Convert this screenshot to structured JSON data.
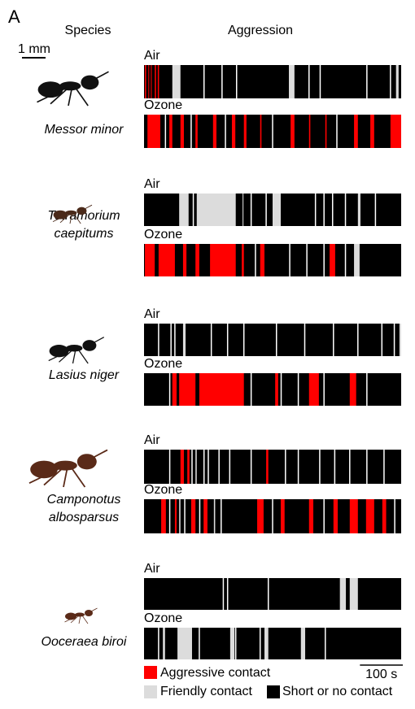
{
  "panel_label": "A",
  "headers": {
    "species": "Species",
    "aggression": "Aggression"
  },
  "size_scale": "1 mm",
  "time_scale": {
    "label": "100 s",
    "seconds": 100
  },
  "duration": 600,
  "legend": {
    "aggressive": {
      "label": "Aggressive contact",
      "color": "#ff0000"
    },
    "friendly": {
      "label": "Friendly contact",
      "color": "#dcdcdc"
    },
    "none": {
      "label": "Short or no contact",
      "color": "#000000"
    }
  },
  "rows": [
    {
      "species": [
        "Messor minor"
      ],
      "conditions": [
        {
          "label": "Air",
          "aggressive": [
            [
              2,
              5
            ],
            [
              10,
              12
            ],
            [
              16,
              18
            ],
            [
              25,
              28
            ],
            [
              32,
              35
            ]
          ],
          "friendly": [
            [
              66,
              85
            ],
            [
              338,
              351
            ],
            [
              588,
              594
            ]
          ],
          "breaks": [
            140,
            182,
            216,
            385,
            411,
            520,
            575
          ]
        },
        {
          "label": "Ozone",
          "aggressive": [
            [
              8,
              38
            ],
            [
              59,
              66
            ],
            [
              85,
              93
            ],
            [
              120,
              125
            ],
            [
              161,
              169
            ],
            [
              205,
              213
            ],
            [
              233,
              239
            ],
            [
              271,
              274
            ],
            [
              342,
              351
            ],
            [
              385,
              388
            ],
            [
              423,
              426
            ],
            [
              490,
              499
            ],
            [
              528,
              537
            ],
            [
              575,
              600
            ]
          ],
          "friendly": [],
          "breaks": [
            50,
            110,
            190,
            300,
            450
          ]
        }
      ]
    },
    {
      "species": [
        "Tetramorium",
        "caepitums"
      ],
      "conditions": [
        {
          "label": "Air",
          "aggressive": [],
          "friendly": [
            [
              82,
              104
            ],
            [
              123,
              214
            ],
            [
              230,
              232
            ],
            [
              300,
              319
            ],
            [
              499,
              505
            ]
          ],
          "breaks": [
            115,
            250,
            285,
            400,
            420,
            440,
            470,
            540
          ]
        },
        {
          "label": "Ozone",
          "aggressive": [
            [
              2,
              25
            ],
            [
              34,
              72
            ],
            [
              91,
              99
            ],
            [
              120,
              129
            ],
            [
              154,
              214
            ],
            [
              228,
              233
            ],
            [
              271,
              281
            ],
            [
              433,
              446
            ]
          ],
          "friendly": [
            [
              490,
              503
            ]
          ],
          "breaks": [
            260,
            340,
            380,
            420,
            470
          ]
        }
      ]
    },
    {
      "species": [
        "Lasius niger"
      ],
      "conditions": [
        {
          "label": "Air",
          "aggressive": [],
          "friendly": [
            [
              91,
              97
            ],
            [
              596,
              600
            ]
          ],
          "breaks": [
            34,
            63,
            72,
            157,
            195,
            233,
            309,
            375,
            442,
            499,
            555,
            584
          ]
        },
        {
          "label": "Ozone",
          "aggressive": [
            [
              66,
              76
            ],
            [
              82,
              120
            ],
            [
              129,
              233
            ],
            [
              306,
              313
            ],
            [
              385,
              408
            ],
            [
              480,
              495
            ]
          ],
          "friendly": [],
          "breaks": [
            60,
            250,
            320,
            360,
            420,
            520
          ]
        }
      ]
    },
    {
      "species": [
        "Camponotus",
        "albosparsus"
      ],
      "conditions": [
        {
          "label": "Air",
          "aggressive": [
            [
              85,
              93
            ],
            [
              101,
              106
            ],
            [
              285,
              290
            ]
          ],
          "friendly": [
            [
              120,
              123
            ]
          ],
          "breaks": [
            60,
            112,
            140,
            150,
            175,
            200,
            250,
            330,
            360,
            410,
            445,
            480,
            520,
            560
          ]
        },
        {
          "label": "Ozone",
          "aggressive": [
            [
              40,
              51
            ],
            [
              72,
              76
            ],
            [
              110,
              120
            ],
            [
              139,
              148
            ],
            [
              264,
              279
            ],
            [
              319,
              328
            ],
            [
              385,
              395
            ],
            [
              442,
              452
            ],
            [
              480,
              499
            ],
            [
              518,
              537
            ],
            [
              556,
              565
            ]
          ],
          "friendly": [
            [
              82,
              85
            ],
            [
              163,
              166
            ]
          ],
          "breaks": [
            60,
            95,
            130,
            180,
            300,
            420,
            585
          ]
        }
      ]
    },
    {
      "species": [
        "Ooceraea biroi"
      ],
      "conditions": [
        {
          "label": "Air",
          "aggressive": [],
          "friendly": [
            [
              457,
              471
            ],
            [
              480,
              499
            ]
          ],
          "breaks": [
            185,
            195,
            290
          ]
        },
        {
          "label": "Ozone",
          "aggressive": [],
          "friendly": [
            [
              44,
              49
            ],
            [
              78,
              112
            ],
            [
              201,
              211
            ],
            [
              281,
              290
            ],
            [
              366,
              376
            ]
          ],
          "breaks": [
            34,
            129,
            214,
            271,
            423
          ]
        }
      ]
    }
  ]
}
